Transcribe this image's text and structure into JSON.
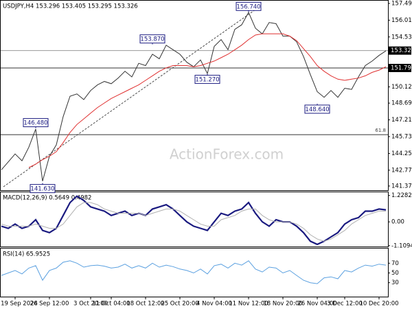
{
  "chart_data": [
    {
      "type": "line",
      "title": "USDJPY,H4 153.296 153.405 153.295 153.326",
      "watermark": "ActionForex.com",
      "categories": [
        null,
        null,
        "19 Sep 2024",
        null,
        null,
        null,
        null,
        "26 Sep 12:00",
        null,
        null,
        null,
        null,
        null,
        "3 Oct 20:00",
        null,
        null,
        "11 Oct 04:00",
        null,
        null,
        null,
        null,
        "18 Oct 12:00",
        null,
        null,
        null,
        null,
        "25 Oct 20:00",
        null,
        null,
        null,
        null,
        "4 Nov 04:00",
        null,
        null,
        null,
        null,
        "11 Nov 12:00",
        null,
        null,
        null,
        null,
        "18 Nov 20:00",
        null,
        null,
        null,
        null,
        "26 Nov 04:00",
        null,
        null,
        null,
        "3 Dec 12:00",
        null,
        null,
        null,
        null,
        "10 Dec 20:00",
        null
      ],
      "series": [
        {
          "color": "#333333",
          "values": [
            142.8,
            143.5,
            144.2,
            143.6,
            144.8,
            146.4,
            141.8,
            144.0,
            145.0,
            147.5,
            149.3,
            149.5,
            149.0,
            149.8,
            150.3,
            150.6,
            150.4,
            150.9,
            151.5,
            151.0,
            152.2,
            152.0,
            153.0,
            152.6,
            153.8,
            153.4,
            153.0,
            152.3,
            151.9,
            152.5,
            151.3,
            153.7,
            154.3,
            153.4,
            155.2,
            155.6,
            156.7,
            155.3,
            154.8,
            155.8,
            155.7,
            154.6,
            154.6,
            154.1,
            152.8,
            151.2,
            149.7,
            149.2,
            149.8,
            149.2,
            150.0,
            149.9,
            151.0,
            152.0,
            152.4,
            152.9,
            153.3
          ]
        },
        {
          "color": "#e03030",
          "values": [
            null,
            null,
            null,
            null,
            143.0,
            143.3,
            143.7,
            144.0,
            144.4,
            145.2,
            146.1,
            146.8,
            147.3,
            147.8,
            148.3,
            148.7,
            149.1,
            149.4,
            149.7,
            150.0,
            150.3,
            150.7,
            151.1,
            151.5,
            151.8,
            152.0,
            152.0,
            152.0,
            151.9,
            152.0,
            152.2,
            152.4,
            152.7,
            153.0,
            153.4,
            153.8,
            154.3,
            154.7,
            154.8,
            154.8,
            154.8,
            154.8,
            154.6,
            154.2,
            153.5,
            152.8,
            152.0,
            151.5,
            151.1,
            150.8,
            150.7,
            150.8,
            150.9,
            151.1,
            151.4,
            151.6,
            151.9
          ]
        }
      ],
      "ylim": [
        140.94,
        157.73
      ],
      "yticks": [
        {
          "value": 157.49,
          "label": "157.490"
        },
        {
          "value": 156.01,
          "label": "156.010"
        },
        {
          "value": 154.53,
          "label": "154.530"
        },
        {
          "value": 150.12,
          "label": "150.120"
        },
        {
          "value": 148.69,
          "label": "148.690"
        },
        {
          "value": 147.21,
          "label": "147.210"
        },
        {
          "value": 145.73,
          "label": "145.730"
        },
        {
          "value": 144.25,
          "label": "144.250"
        },
        {
          "value": 142.77,
          "label": "142.770"
        },
        {
          "value": 141.37,
          "label": "141.370"
        }
      ],
      "levels": [
        {
          "value": 153.326,
          "label": "153.326",
          "color": "#999999"
        },
        {
          "value": 151.79,
          "label": "151.790",
          "color": "#333333"
        },
        {
          "value": 145.9,
          "name": "61.8",
          "color": "#333333"
        }
      ],
      "annotations": [
        {
          "x": 36,
          "value": 156.74,
          "label": "156.740",
          "side": "above"
        },
        {
          "x": 22,
          "value": 153.87,
          "label": "153.870",
          "side": "above"
        },
        {
          "x": 30,
          "value": 151.27,
          "label": "151.270",
          "side": "below"
        },
        {
          "x": 5,
          "value": 146.48,
          "label": "146.480",
          "side": "above"
        },
        {
          "x": 6,
          "value": 141.63,
          "label": "141.630",
          "side": "below"
        },
        {
          "x": 46,
          "value": 148.64,
          "label": "148.640",
          "side": "below"
        }
      ]
    },
    {
      "type": "line",
      "title": "MACD(12,26,9) 0.5649 0.4982",
      "series": [
        {
          "color": "#1a1a80",
          "width": 2.2,
          "values": [
            -0.2,
            -0.3,
            -0.1,
            -0.3,
            -0.2,
            0.1,
            -0.4,
            -0.5,
            -0.3,
            0.3,
            0.9,
            1.2,
            1.0,
            0.7,
            0.6,
            0.5,
            0.3,
            0.4,
            0.5,
            0.3,
            0.4,
            0.3,
            0.6,
            0.7,
            0.8,
            0.6,
            0.3,
            0.0,
            -0.2,
            -0.3,
            -0.4,
            0.0,
            0.4,
            0.3,
            0.5,
            0.6,
            0.9,
            0.4,
            0.0,
            -0.2,
            0.1,
            0.0,
            0.0,
            -0.2,
            -0.5,
            -0.9,
            -1.05,
            -0.9,
            -0.7,
            -0.5,
            -0.1,
            0.1,
            0.2,
            0.5,
            0.5,
            0.6,
            0.56
          ]
        },
        {
          "color": "#b0b0b0",
          "width": 1,
          "values": [
            -0.1,
            -0.2,
            -0.2,
            -0.2,
            -0.2,
            -0.1,
            -0.2,
            -0.3,
            -0.3,
            -0.1,
            0.3,
            0.7,
            0.9,
            0.9,
            0.8,
            0.6,
            0.5,
            0.4,
            0.4,
            0.4,
            0.4,
            0.3,
            0.4,
            0.5,
            0.6,
            0.6,
            0.5,
            0.3,
            0.1,
            -0.1,
            -0.2,
            -0.2,
            0.1,
            0.2,
            0.3,
            0.5,
            0.6,
            0.6,
            0.3,
            0.1,
            0.0,
            0.0,
            0.0,
            -0.1,
            -0.3,
            -0.6,
            -0.8,
            -0.9,
            -0.8,
            -0.6,
            -0.4,
            -0.1,
            0.1,
            0.3,
            0.4,
            0.5,
            0.5
          ]
        }
      ],
      "ylim": [
        -1.18,
        1.38
      ],
      "yticks": [
        1.2282,
        {
          "value": 0,
          "label": "0.00"
        },
        -1.1094
      ]
    },
    {
      "type": "line",
      "title": "RSI(14) 65.9525",
      "series": [
        {
          "color": "#5aa0e0",
          "width": 1,
          "values": [
            45,
            50,
            55,
            48,
            60,
            65,
            35,
            55,
            60,
            72,
            75,
            70,
            62,
            65,
            66,
            64,
            60,
            62,
            68,
            60,
            65,
            60,
            70,
            62,
            66,
            63,
            58,
            55,
            50,
            58,
            48,
            65,
            68,
            60,
            70,
            66,
            75,
            58,
            52,
            62,
            60,
            50,
            55,
            45,
            35,
            30,
            28,
            40,
            42,
            38,
            55,
            52,
            60,
            66,
            64,
            68,
            66
          ]
        }
      ],
      "ylim": [
        0,
        100
      ],
      "yticks": [
        70,
        50,
        30
      ]
    }
  ]
}
